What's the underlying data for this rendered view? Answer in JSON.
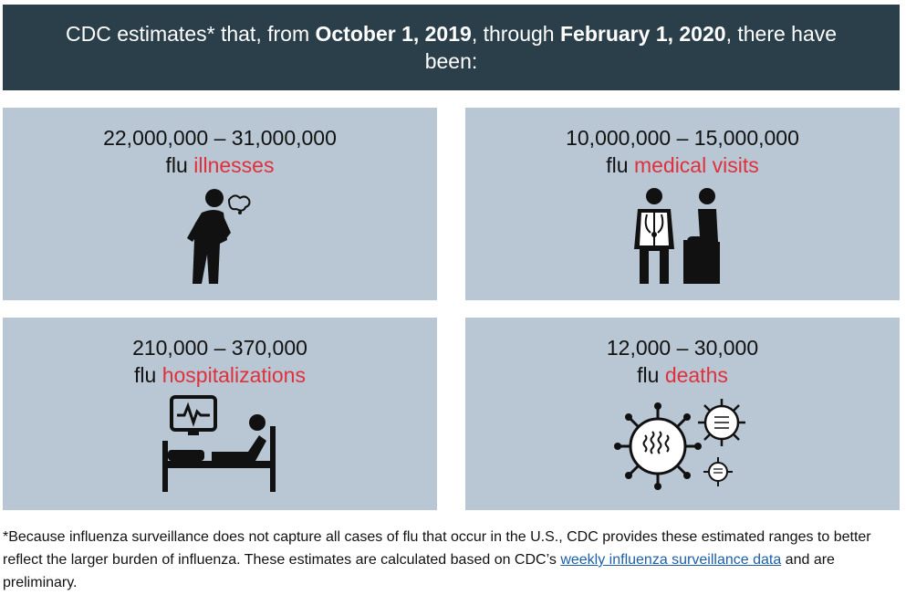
{
  "banner": {
    "part1": "CDC estimates* that, from ",
    "date_start": "October 1, 2019",
    "part2": ", through ",
    "date_end": "February 1, 2020",
    "part3": ", there have been:"
  },
  "cards": [
    {
      "range": "22,000,000 – 31,000,000",
      "prefix": "flu ",
      "accent": "illnesses",
      "icon": "sick-person-icon"
    },
    {
      "range": "10,000,000 – 15,000,000",
      "prefix": "flu ",
      "accent": "medical visits",
      "icon": "doctor-patient-icon"
    },
    {
      "range": "210,000 – 370,000",
      "prefix": "flu ",
      "accent": "hospitalizations",
      "icon": "hospital-bed-icon"
    },
    {
      "range": "12,000 – 30,000",
      "prefix": "flu ",
      "accent": "deaths",
      "icon": "virus-icon"
    }
  ],
  "footnote": {
    "text_before": "*Because influenza surveillance does not capture all cases of flu that occur in the U.S., CDC provides these estimated ranges to better reflect the larger burden of influenza. These estimates are calculated based on CDC’s ",
    "link": "weekly influenza surveillance data",
    "text_after": " and are preliminary."
  },
  "colors": {
    "banner_bg": "#2b3f4b",
    "card_bg": "#b8c7d3",
    "accent": "#e0303c",
    "link": "#1d5fa8"
  }
}
